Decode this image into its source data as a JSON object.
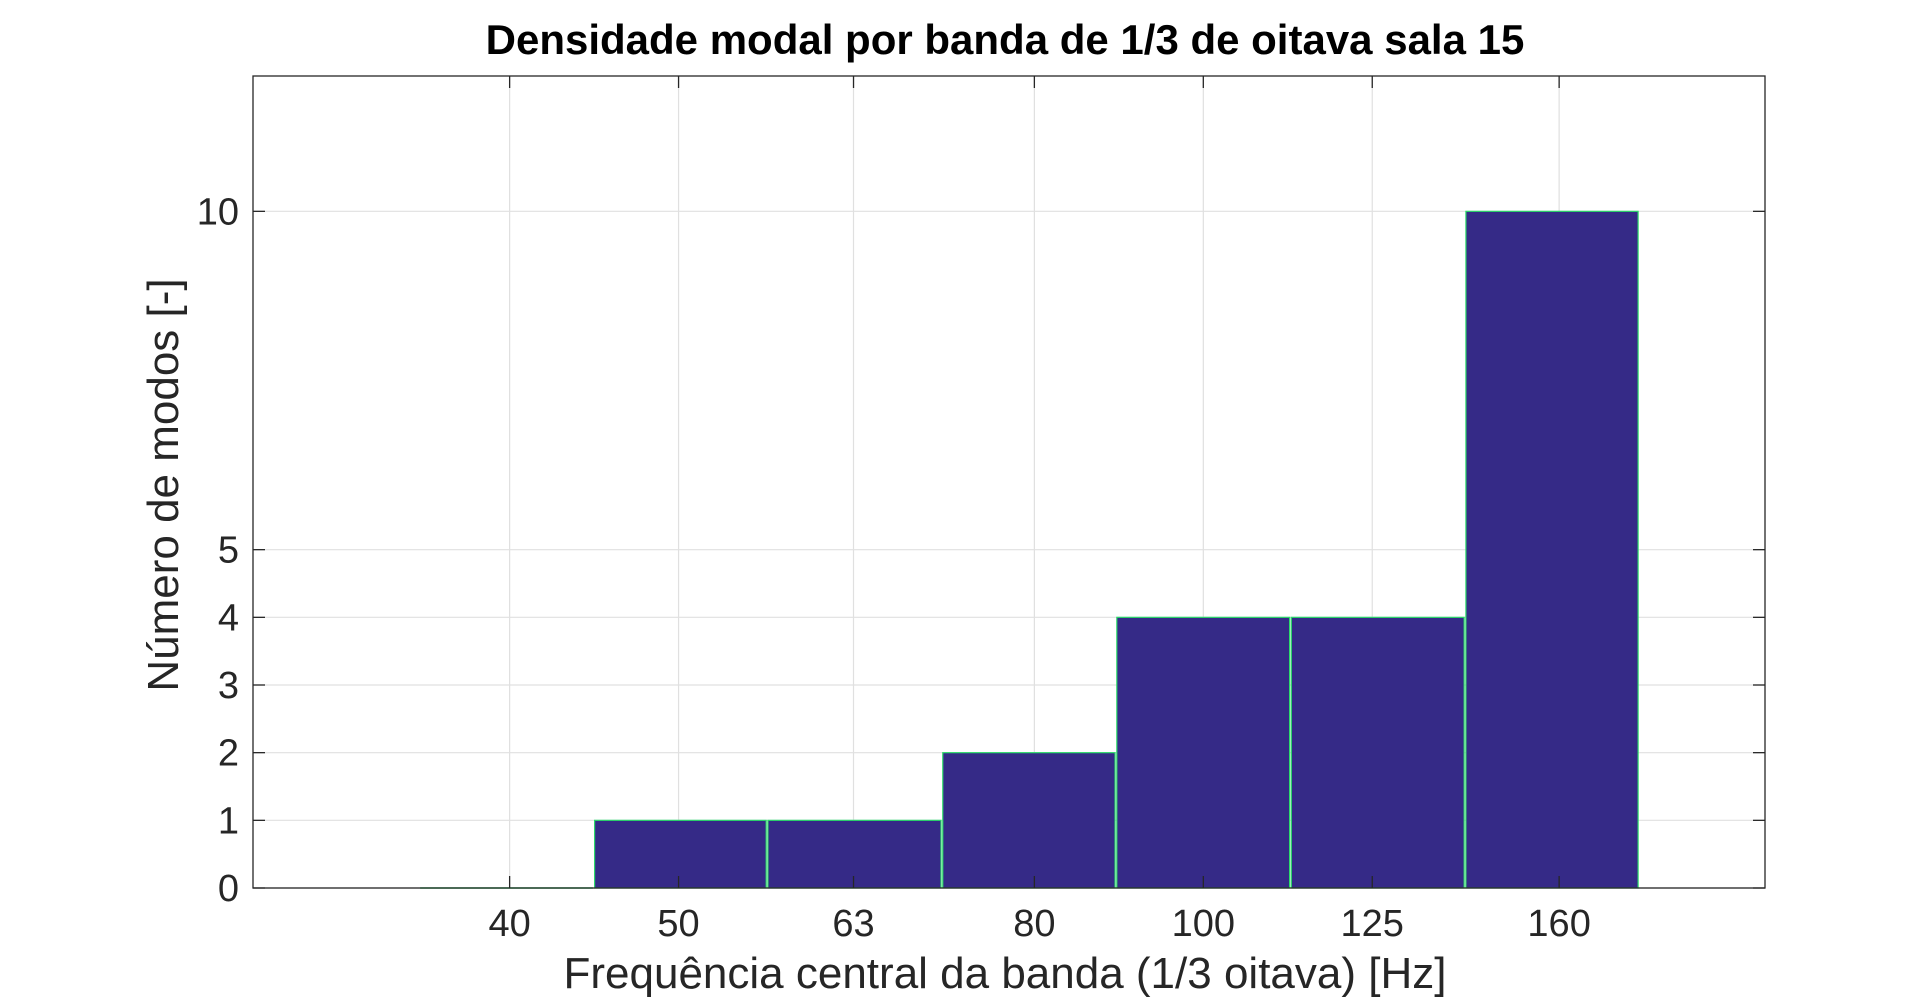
{
  "chart_data": {
    "type": "bar",
    "title": "Densidade modal por banda de 1/3 de oitava sala 15",
    "xlabel": "Frequência central da banda (1/3 oitava) [Hz]",
    "ylabel": "Número de modos [-]",
    "x_scale": "log",
    "xlim": [
      28.5,
      210
    ],
    "ylim": [
      0,
      12
    ],
    "grid": true,
    "x_ticks": [
      {
        "value": 40,
        "label": "40"
      },
      {
        "value": 50,
        "label": "50"
      },
      {
        "value": 63,
        "label": "63"
      },
      {
        "value": 80,
        "label": "80"
      },
      {
        "value": 100,
        "label": "100"
      },
      {
        "value": 125,
        "label": "125"
      },
      {
        "value": 160,
        "label": "160"
      }
    ],
    "y_ticks": [
      {
        "value": 0,
        "label": "0"
      },
      {
        "value": 1,
        "label": "1"
      },
      {
        "value": 2,
        "label": "2"
      },
      {
        "value": 3,
        "label": "3"
      },
      {
        "value": 4,
        "label": "4"
      },
      {
        "value": 5,
        "label": "5"
      },
      {
        "value": 10,
        "label": "10"
      }
    ],
    "bars": [
      {
        "band": "40",
        "lower": 35.5,
        "upper": 44.7,
        "value": 0
      },
      {
        "band": "50",
        "lower": 44.7,
        "upper": 56.2,
        "value": 1
      },
      {
        "band": "63",
        "lower": 56.2,
        "upper": 70.8,
        "value": 1
      },
      {
        "band": "80",
        "lower": 70.8,
        "upper": 89.1,
        "value": 2
      },
      {
        "band": "100",
        "lower": 89.1,
        "upper": 112.2,
        "value": 4
      },
      {
        "band": "125",
        "lower": 112.2,
        "upper": 141.3,
        "value": 4
      },
      {
        "band": "160",
        "lower": 141.3,
        "upper": 177.8,
        "value": 10
      }
    ],
    "bar_color": "#352a87",
    "bar_edge_color": "#2bd96a",
    "grid_color": "#e0e0e0",
    "axis_color": "#262626"
  }
}
